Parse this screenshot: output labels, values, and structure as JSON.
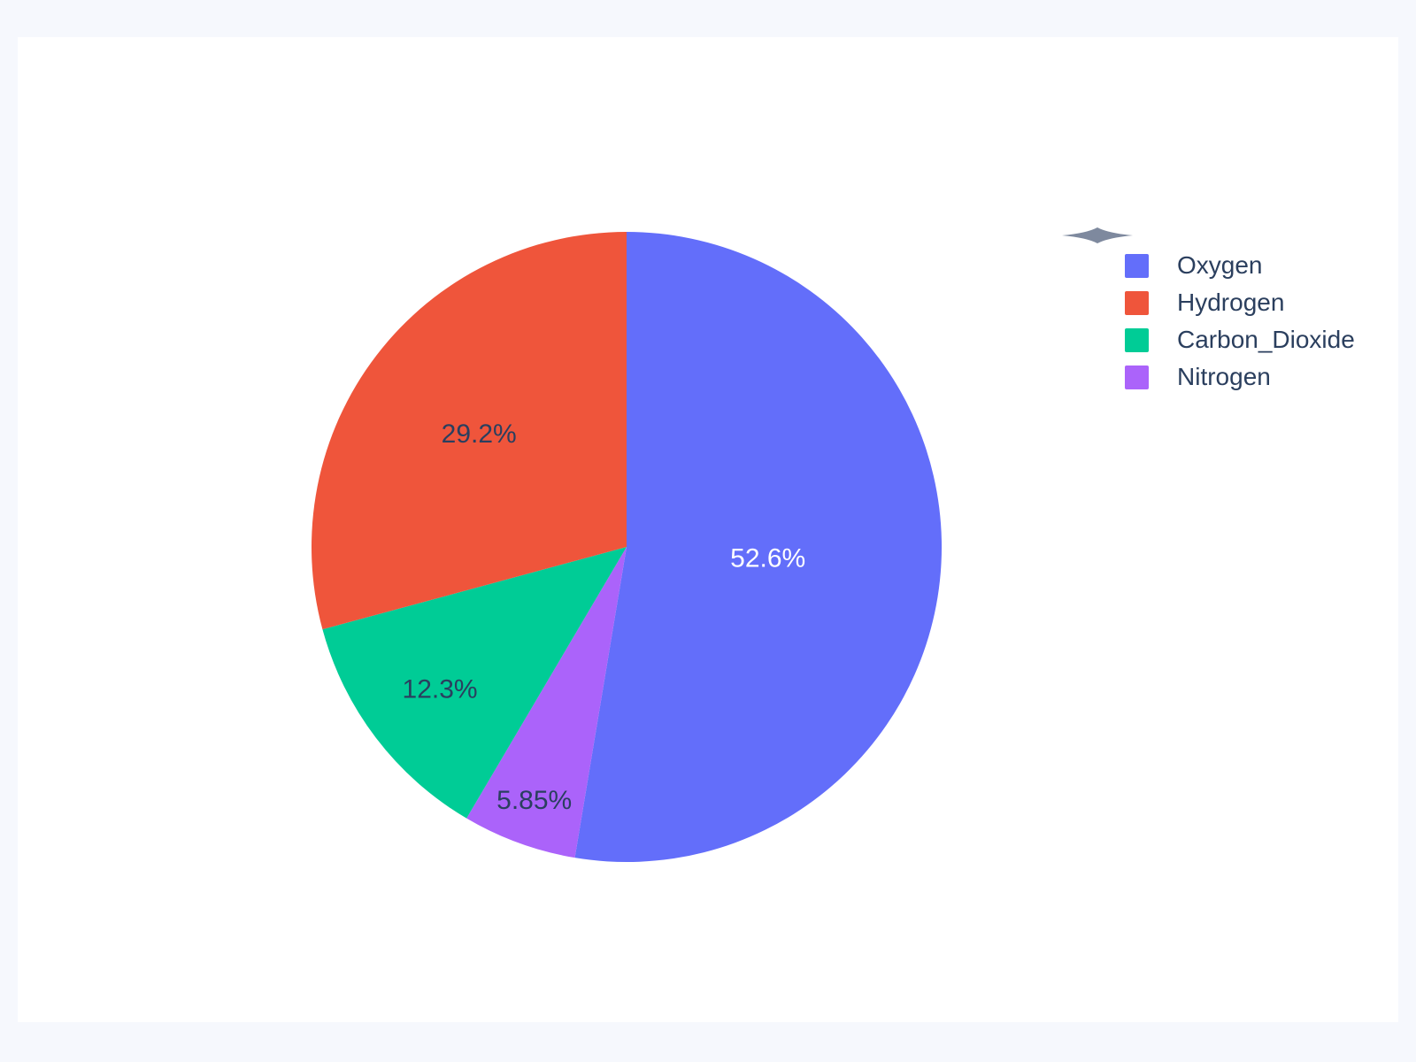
{
  "page": {
    "background_color": "#F6F8FD",
    "card_color": "#FFFFFF"
  },
  "chart_data": {
    "type": "pie",
    "title": "",
    "legend_position": "right",
    "direction": "first-slice-clockwise-from-top",
    "slices": [
      {
        "label": "Oxygen",
        "percent": 52.6,
        "percent_label": "52.6%",
        "color": "#636EFA",
        "text_color": "#FFFFFF"
      },
      {
        "label": "Hydrogen",
        "percent": 29.2,
        "percent_label": "29.2%",
        "color": "#EF553B",
        "text_color": "#2A3F5F"
      },
      {
        "label": "Carbon_Dioxide",
        "percent": 12.3,
        "percent_label": "12.3%",
        "color": "#00CC96",
        "text_color": "#2A3F5F"
      },
      {
        "label": "Nitrogen",
        "percent": 5.85,
        "percent_label": "5.85%",
        "color": "#AB63FA",
        "text_color": "#2A3F5F"
      }
    ],
    "legend": {
      "items": [
        "Oxygen",
        "Hydrogen",
        "Carbon_Dioxide",
        "Nitrogen"
      ],
      "text_color": "#2B3F5E"
    }
  },
  "decor": {
    "star_marker": "four-point-star",
    "star_color": "#7E899E"
  }
}
